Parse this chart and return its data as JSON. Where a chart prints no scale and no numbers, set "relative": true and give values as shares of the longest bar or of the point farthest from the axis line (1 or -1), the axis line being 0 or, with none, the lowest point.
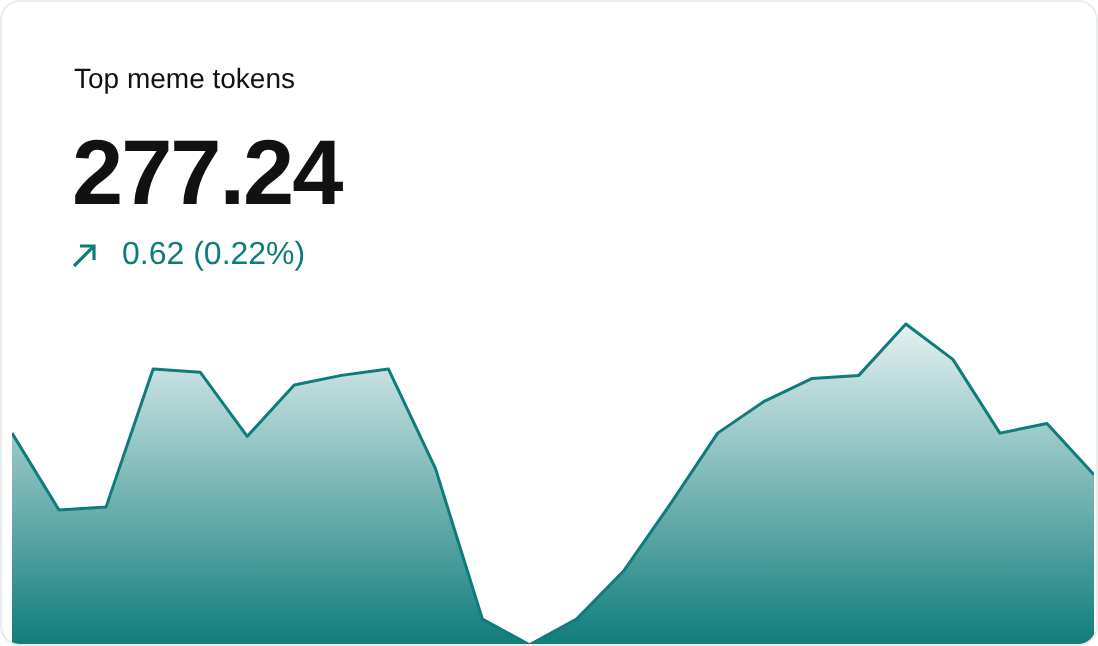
{
  "chart_data": {
    "type": "area",
    "title": "Top meme tokens",
    "subtitle": "277.24",
    "annotations": [
      "0.62 (0.22%)"
    ],
    "categories": [
      null,
      null,
      null,
      null,
      null,
      null,
      null,
      null,
      null,
      null,
      null,
      null,
      null,
      null,
      null,
      null,
      null,
      null,
      null,
      null,
      null,
      null,
      null,
      null
    ],
    "series": [
      {
        "color": "#0e7c7b",
        "values": [
          0.66,
          0.42,
          0.43,
          0.86,
          0.85,
          0.65,
          0.81,
          0.84,
          0.86,
          0.55,
          0.08,
          0,
          0.08,
          0.23,
          0.44,
          0.66,
          0.76,
          0.83,
          0.84,
          1,
          0.89,
          0.66,
          0.69,
          0.53
        ]
      }
    ],
    "relative": true
  }
}
